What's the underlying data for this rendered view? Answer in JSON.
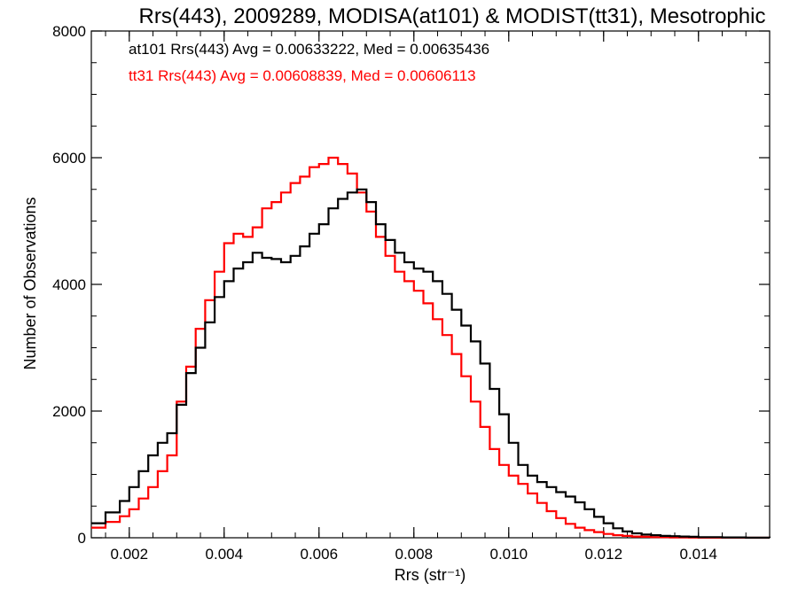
{
  "chart_data": {
    "type": "line",
    "title": "Rrs(443), 2009289, MODISA(at101) & MODIST(tt31), Mesotrophic",
    "xlabel": "Rrs (str⁻¹)",
    "ylabel": "Number of Observations",
    "xlim": [
      0.0012,
      0.0155
    ],
    "ylim": [
      0,
      8000
    ],
    "xticks": [
      "0.002",
      "0.004",
      "0.006",
      "0.008",
      "0.010",
      "0.012",
      "0.014"
    ],
    "xtick_values": [
      0.002,
      0.004,
      0.006,
      0.008,
      0.01,
      0.012,
      0.014
    ],
    "yticks": [
      "0",
      "2000",
      "4000",
      "6000",
      "8000"
    ],
    "ytick_values": [
      0,
      2000,
      4000,
      6000,
      8000
    ],
    "grid": false,
    "annotations": [
      {
        "text": "at101 Rrs(443) Avg = 0.00633222, Med = 0.00635436",
        "color": "#000000"
      },
      {
        "text": "tt31 Rrs(443) Avg = 0.00608839, Med = 0.00606113",
        "color": "#ff0000"
      }
    ],
    "series": [
      {
        "color": "#000000",
        "x": [
          0.0012,
          0.0015,
          0.0018,
          0.002,
          0.0022,
          0.0024,
          0.0026,
          0.0028,
          0.003,
          0.0032,
          0.0034,
          0.0036,
          0.0038,
          0.004,
          0.0042,
          0.0044,
          0.0046,
          0.0048,
          0.005,
          0.0052,
          0.0054,
          0.0056,
          0.0058,
          0.006,
          0.0062,
          0.0064,
          0.0066,
          0.0068,
          0.007,
          0.0072,
          0.0074,
          0.0076,
          0.0078,
          0.008,
          0.0082,
          0.0084,
          0.0086,
          0.0088,
          0.009,
          0.0092,
          0.0094,
          0.0096,
          0.0098,
          0.01,
          0.0102,
          0.0104,
          0.0106,
          0.0108,
          0.011,
          0.0112,
          0.0114,
          0.0116,
          0.0118,
          0.012,
          0.0122,
          0.0124,
          0.0126,
          0.0128,
          0.013,
          0.0132,
          0.0134,
          0.0136,
          0.0138,
          0.014,
          0.0145,
          0.015,
          0.0155
        ],
        "values": [
          230,
          400,
          580,
          800,
          1050,
          1300,
          1500,
          1650,
          2100,
          2600,
          3000,
          3400,
          3800,
          4050,
          4250,
          4350,
          4500,
          4420,
          4400,
          4350,
          4450,
          4600,
          4800,
          4950,
          5200,
          5350,
          5450,
          5500,
          5300,
          4950,
          4700,
          4500,
          4350,
          4250,
          4200,
          4050,
          3850,
          3600,
          3350,
          3100,
          2750,
          2350,
          1950,
          1500,
          1150,
          980,
          880,
          800,
          720,
          650,
          560,
          450,
          330,
          230,
          150,
          100,
          70,
          50,
          40,
          30,
          25,
          20,
          15,
          10,
          5,
          2,
          0
        ]
      },
      {
        "color": "#ff0000",
        "x": [
          0.0012,
          0.0015,
          0.0018,
          0.002,
          0.0022,
          0.0024,
          0.0026,
          0.0028,
          0.003,
          0.0032,
          0.0034,
          0.0036,
          0.0038,
          0.004,
          0.0042,
          0.0044,
          0.0046,
          0.0048,
          0.005,
          0.0052,
          0.0054,
          0.0056,
          0.0058,
          0.006,
          0.0062,
          0.0064,
          0.0066,
          0.0068,
          0.007,
          0.0072,
          0.0074,
          0.0076,
          0.0078,
          0.008,
          0.0082,
          0.0084,
          0.0086,
          0.0088,
          0.009,
          0.0092,
          0.0094,
          0.0096,
          0.0098,
          0.01,
          0.0102,
          0.0104,
          0.0106,
          0.0108,
          0.011,
          0.0112,
          0.0114,
          0.0116,
          0.0118,
          0.012,
          0.0122,
          0.0124,
          0.0126,
          0.0128,
          0.013,
          0.0132,
          0.0134,
          0.0136,
          0.0138,
          0.014,
          0.0145,
          0.015,
          0.0155
        ],
        "values": [
          160,
          250,
          340,
          450,
          620,
          800,
          1050,
          1300,
          2150,
          2700,
          3300,
          3750,
          4200,
          4650,
          4800,
          4750,
          4900,
          5200,
          5300,
          5450,
          5600,
          5700,
          5850,
          5900,
          6000,
          5900,
          5750,
          5450,
          5150,
          4750,
          4450,
          4200,
          4050,
          3900,
          3700,
          3450,
          3200,
          2900,
          2550,
          2150,
          1750,
          1400,
          1150,
          980,
          850,
          700,
          550,
          420,
          310,
          220,
          160,
          120,
          90,
          60,
          40,
          30,
          20,
          15,
          10,
          8,
          5,
          4,
          3,
          2,
          1,
          0,
          0
        ]
      }
    ]
  }
}
